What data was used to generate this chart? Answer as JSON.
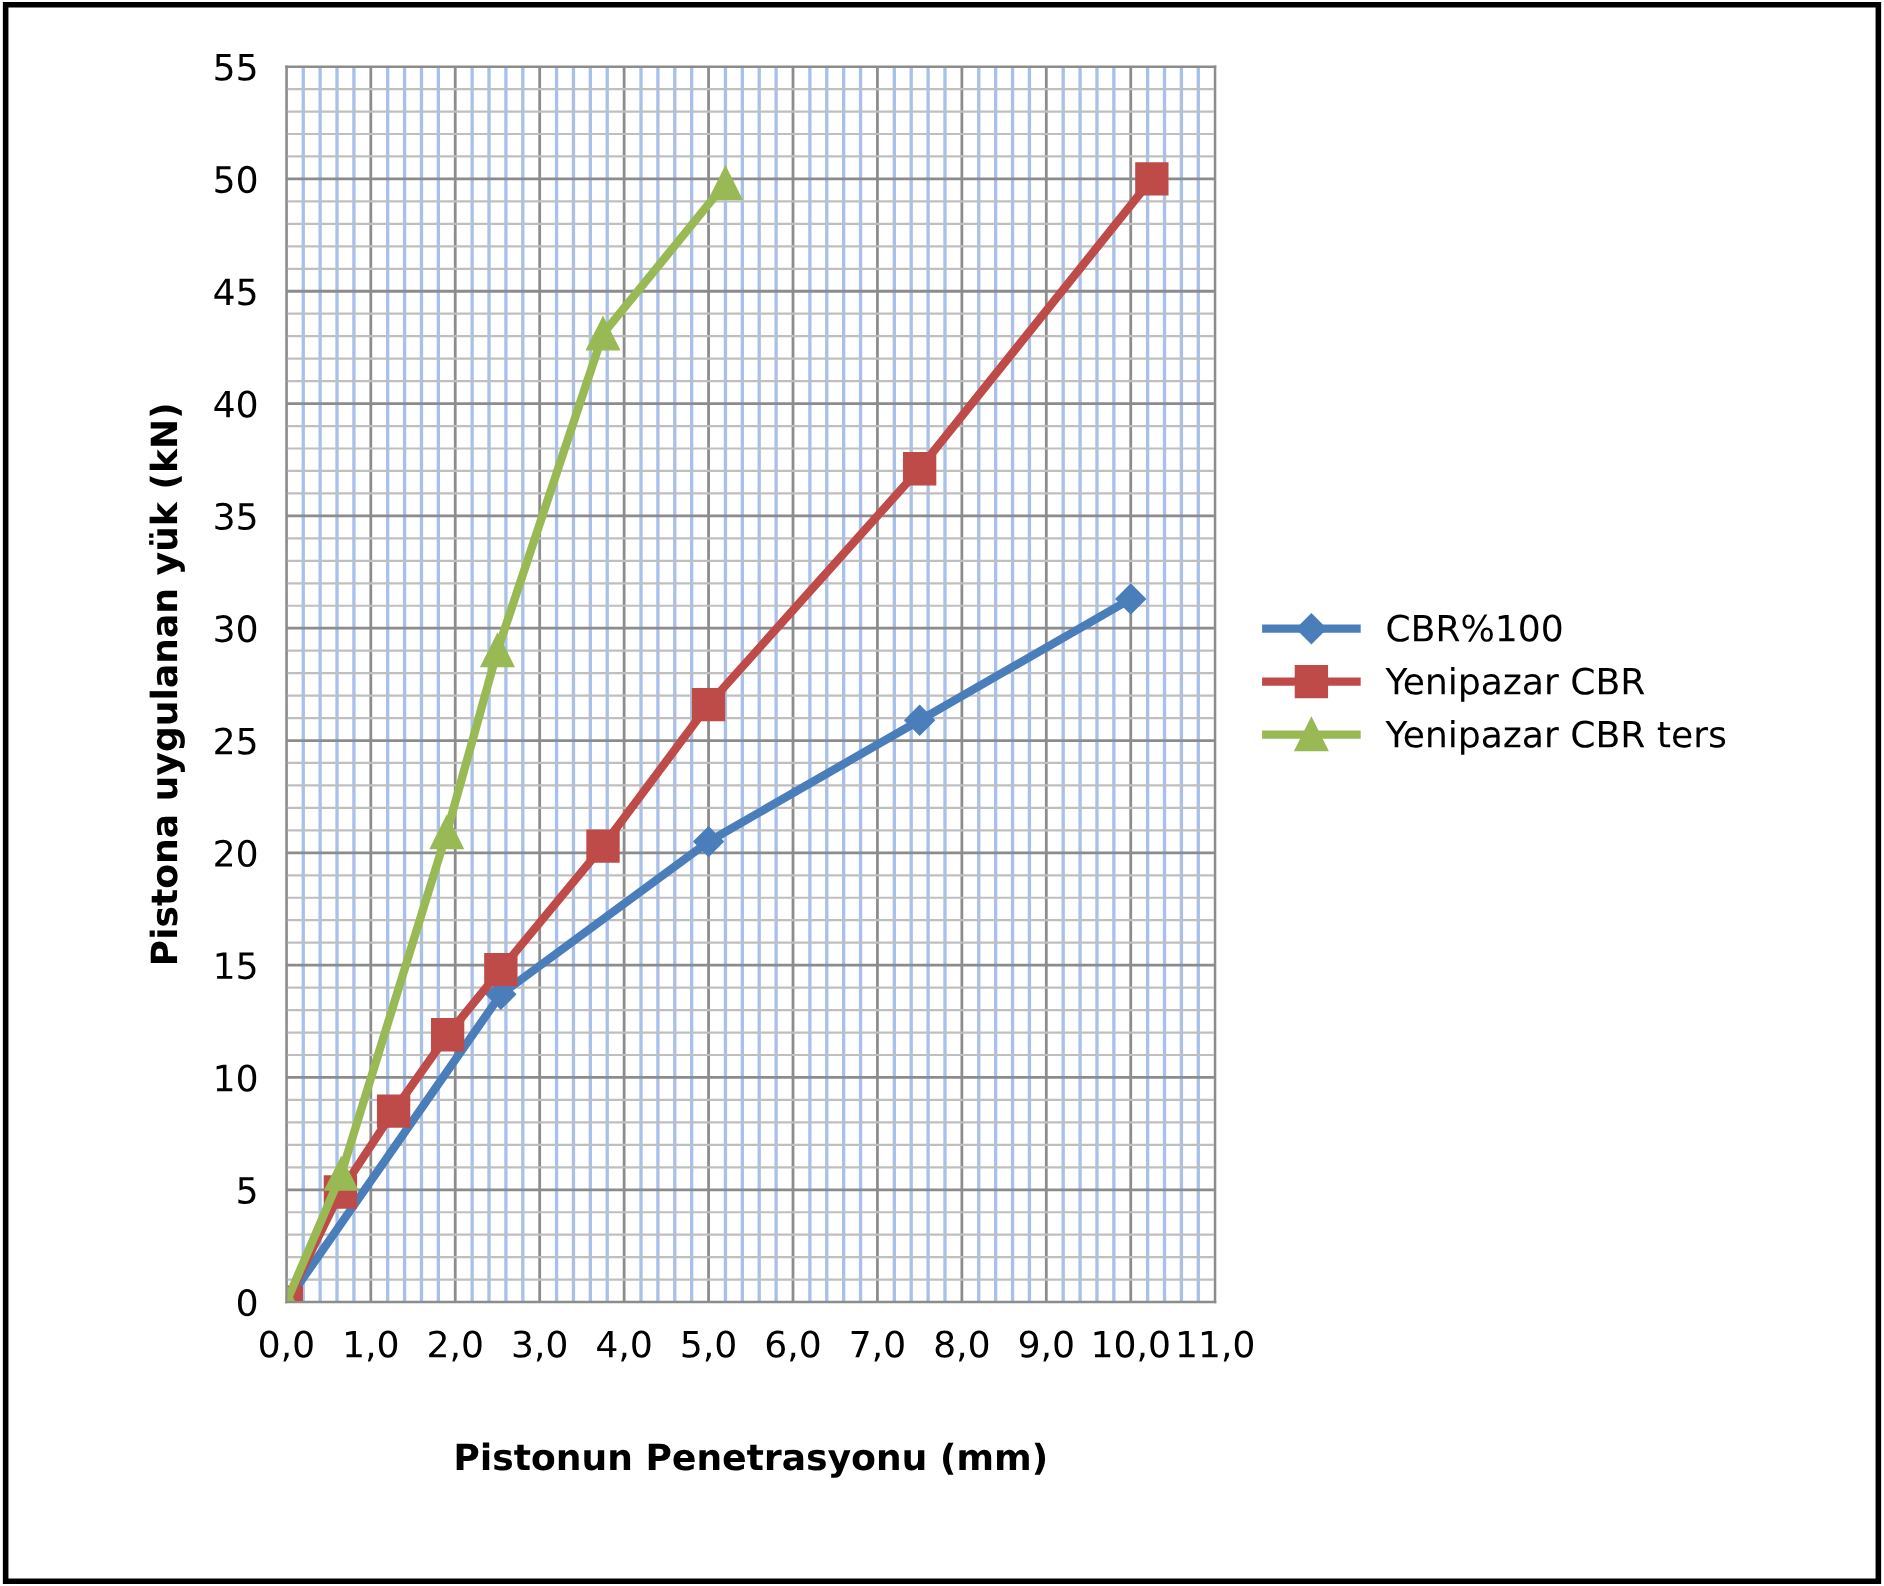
{
  "chart_data": {
    "type": "line",
    "xlabel": "Pistonun Penetrasyonu (mm)",
    "ylabel": "Pistona uygulanan yük (kN)",
    "xlim": [
      0,
      11
    ],
    "ylim": [
      0,
      55
    ],
    "xticks": [
      {
        "value": 0,
        "label": "0,0"
      },
      {
        "value": 0.2,
        "label": null
      },
      {
        "value": 0.4,
        "label": null
      },
      {
        "value": 0.6,
        "label": null
      },
      {
        "value": 0.8,
        "label": null
      },
      {
        "value": 1,
        "label": "1,0"
      },
      {
        "value": 1.2,
        "label": null
      },
      {
        "value": 1.4,
        "label": null
      },
      {
        "value": 1.6,
        "label": null
      },
      {
        "value": 1.8,
        "label": null
      },
      {
        "value": 2,
        "label": "2,0"
      },
      {
        "value": 2.2,
        "label": null
      },
      {
        "value": 2.4,
        "label": null
      },
      {
        "value": 2.6,
        "label": null
      },
      {
        "value": 2.8,
        "label": null
      },
      {
        "value": 3,
        "label": "3,0"
      },
      {
        "value": 3.2,
        "label": null
      },
      {
        "value": 3.4,
        "label": null
      },
      {
        "value": 3.6,
        "label": null
      },
      {
        "value": 3.8,
        "label": null
      },
      {
        "value": 4,
        "label": "4,0"
      },
      {
        "value": 4.2,
        "label": null
      },
      {
        "value": 4.4,
        "label": null
      },
      {
        "value": 4.6,
        "label": null
      },
      {
        "value": 4.8,
        "label": null
      },
      {
        "value": 5,
        "label": "5,0"
      },
      {
        "value": 5.2,
        "label": null
      },
      {
        "value": 5.4,
        "label": null
      },
      {
        "value": 5.6,
        "label": null
      },
      {
        "value": 5.8,
        "label": null
      },
      {
        "value": 6,
        "label": "6,0"
      },
      {
        "value": 6.2,
        "label": null
      },
      {
        "value": 6.4,
        "label": null
      },
      {
        "value": 6.6,
        "label": null
      },
      {
        "value": 6.8,
        "label": null
      },
      {
        "value": 7,
        "label": "7,0"
      },
      {
        "value": 7.2,
        "label": null
      },
      {
        "value": 7.4,
        "label": null
      },
      {
        "value": 7.6,
        "label": null
      },
      {
        "value": 7.8,
        "label": null
      },
      {
        "value": 8,
        "label": "8,0"
      },
      {
        "value": 8.2,
        "label": null
      },
      {
        "value": 8.4,
        "label": null
      },
      {
        "value": 8.6,
        "label": null
      },
      {
        "value": 8.8,
        "label": null
      },
      {
        "value": 9,
        "label": "9,0"
      },
      {
        "value": 9.2,
        "label": null
      },
      {
        "value": 9.4,
        "label": null
      },
      {
        "value": 9.6,
        "label": null
      },
      {
        "value": 9.8,
        "label": null
      },
      {
        "value": 10,
        "label": "10,0"
      },
      {
        "value": 10.2,
        "label": null
      },
      {
        "value": 10.4,
        "label": null
      },
      {
        "value": 10.6,
        "label": null
      },
      {
        "value": 10.8,
        "label": null
      },
      {
        "value": 11,
        "label": "11,0"
      }
    ],
    "yticks": [
      0,
      {
        "value": 1,
        "label": null
      },
      {
        "value": 2,
        "label": null
      },
      {
        "value": 3,
        "label": null
      },
      {
        "value": 4,
        "label": null
      },
      5,
      {
        "value": 6,
        "label": null
      },
      {
        "value": 7,
        "label": null
      },
      {
        "value": 8,
        "label": null
      },
      {
        "value": 9,
        "label": null
      },
      10,
      {
        "value": 11,
        "label": null
      },
      {
        "value": 12,
        "label": null
      },
      {
        "value": 13,
        "label": null
      },
      {
        "value": 14,
        "label": null
      },
      15,
      {
        "value": 16,
        "label": null
      },
      {
        "value": 17,
        "label": null
      },
      {
        "value": 18,
        "label": null
      },
      {
        "value": 19,
        "label": null
      },
      20,
      {
        "value": 21,
        "label": null
      },
      {
        "value": 22,
        "label": null
      },
      {
        "value": 23,
        "label": null
      },
      {
        "value": 24,
        "label": null
      },
      25,
      {
        "value": 26,
        "label": null
      },
      {
        "value": 27,
        "label": null
      },
      {
        "value": 28,
        "label": null
      },
      {
        "value": 29,
        "label": null
      },
      30,
      {
        "value": 31,
        "label": null
      },
      {
        "value": 32,
        "label": null
      },
      {
        "value": 33,
        "label": null
      },
      {
        "value": 34,
        "label": null
      },
      35,
      {
        "value": 36,
        "label": null
      },
      {
        "value": 37,
        "label": null
      },
      {
        "value": 38,
        "label": null
      },
      {
        "value": 39,
        "label": null
      },
      40,
      {
        "value": 41,
        "label": null
      },
      {
        "value": 42,
        "label": null
      },
      {
        "value": 43,
        "label": null
      },
      {
        "value": 44,
        "label": null
      },
      45,
      {
        "value": 46,
        "label": null
      },
      {
        "value": 47,
        "label": null
      },
      {
        "value": 48,
        "label": null
      },
      {
        "value": 49,
        "label": null
      },
      50,
      {
        "value": 51,
        "label": null
      },
      {
        "value": 52,
        "label": null
      },
      {
        "value": 53,
        "label": null
      },
      {
        "value": 54,
        "label": null
      },
      55
    ],
    "grid": true,
    "legend": "right",
    "line_style": "solid",
    "series": [
      {
        "name": "CBR%100",
        "color": "#4a7ebb",
        "marker": "diamond",
        "x": [
          0,
          2.54,
          5.0,
          7.5,
          10.0
        ],
        "values": [
          0,
          13.7,
          20.5,
          25.9,
          31.3
        ]
      },
      {
        "name": "Yenipazar CBR",
        "color": "#be4b48",
        "marker": "square",
        "x": [
          0,
          0.64,
          1.27,
          1.91,
          2.54,
          3.75,
          5.0,
          7.5,
          10.25
        ],
        "values": [
          0,
          4.9,
          8.5,
          11.9,
          14.8,
          20.3,
          26.6,
          37.1,
          50
        ]
      },
      {
        "name": "Yenipazar CBR ters",
        "color": "#98b954",
        "marker": "triangle",
        "x": [
          0,
          0.65,
          1.9,
          2.5,
          3.75,
          5.2
        ],
        "values": [
          0,
          5.7,
          20.9,
          29.0,
          43.1,
          49.8
        ]
      }
    ]
  }
}
